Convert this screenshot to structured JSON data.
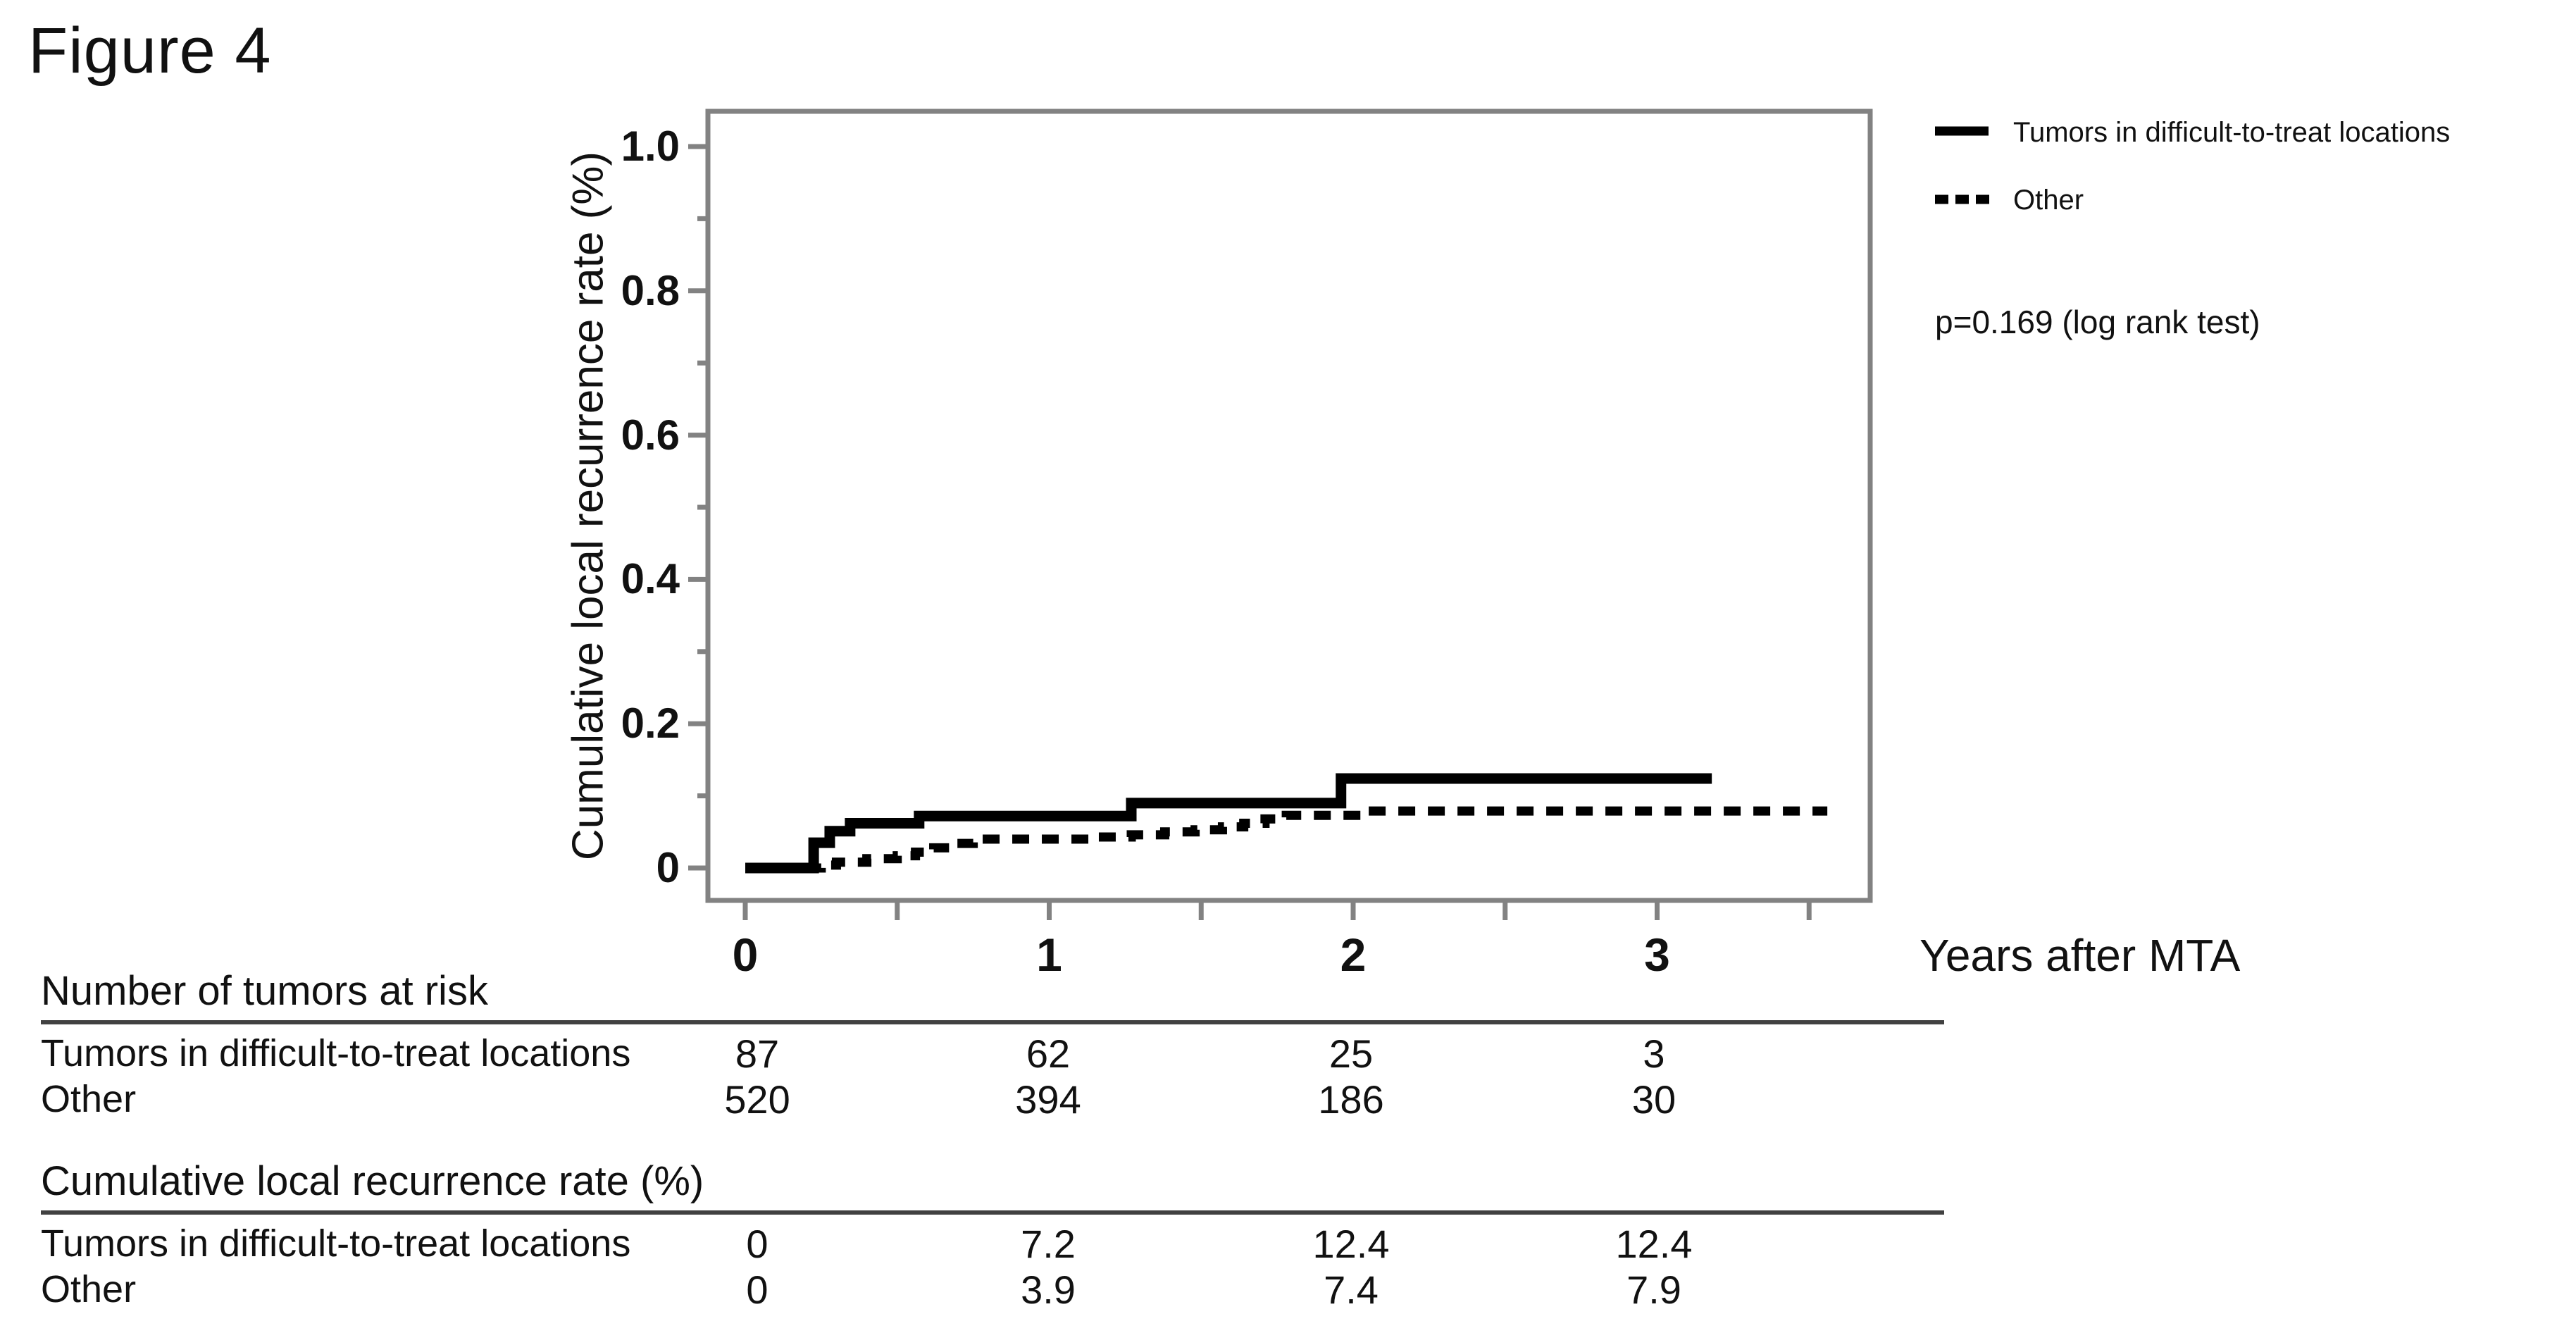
{
  "figure": {
    "label": "Figure 4"
  },
  "chart_data": {
    "type": "line",
    "subtype": "cumulative-incidence-step-curves",
    "title": "",
    "xlabel": "Years after MTA",
    "ylabel": "Cumulative local recurrence rate (%)",
    "xlim": [
      0,
      3.7
    ],
    "ylim": [
      0,
      1.08
    ],
    "grid": false,
    "legend_position": "outside-top-right",
    "annotation": "p=0.169 (log rank test)",
    "x_ticks": {
      "major": [
        0,
        1,
        2,
        3
      ],
      "minor": [
        0.5,
        1.5,
        2.5,
        3.5
      ],
      "labels": [
        "0",
        "1",
        "2",
        "3"
      ]
    },
    "y_ticks": {
      "major": [
        0,
        0.2,
        0.4,
        0.6,
        0.8,
        1.0
      ],
      "minor": [
        0.1,
        0.3,
        0.5,
        0.7,
        0.9
      ],
      "labels": [
        "0",
        "0.2",
        "0.4",
        "0.6",
        "0.8",
        "1.0"
      ]
    },
    "series": [
      {
        "name": "Tumors in difficult-to-treat locations",
        "line_style": "solid",
        "color": "#000000",
        "step_points": [
          [
            0,
            0
          ],
          [
            0.225,
            0.035
          ],
          [
            0.278,
            0.051
          ],
          [
            0.345,
            0.062
          ],
          [
            0.572,
            0.072
          ],
          [
            1.27,
            0.09
          ],
          [
            1.96,
            0.124
          ]
        ],
        "end_x": 3.18
      },
      {
        "name": "Other",
        "line_style": "dashed",
        "color": "#000000",
        "step_points": [
          [
            0,
            0
          ],
          [
            0.25,
            0.004
          ],
          [
            0.3,
            0.008
          ],
          [
            0.4,
            0.013
          ],
          [
            0.5,
            0.017
          ],
          [
            0.56,
            0.022
          ],
          [
            0.62,
            0.028
          ],
          [
            0.68,
            0.034
          ],
          [
            0.75,
            0.04
          ],
          [
            1.15,
            0.043
          ],
          [
            1.27,
            0.046
          ],
          [
            1.38,
            0.05
          ],
          [
            1.48,
            0.053
          ],
          [
            1.57,
            0.057
          ],
          [
            1.64,
            0.062
          ],
          [
            1.71,
            0.068
          ],
          [
            1.78,
            0.073
          ],
          [
            2.05,
            0.079
          ]
        ],
        "end_x": 3.56
      }
    ]
  },
  "tables": [
    {
      "title": "Number of tumors at risk",
      "rows": [
        {
          "label": "Tumors in difficult-to-treat locations",
          "values": [
            "87",
            "62",
            "25",
            "3"
          ]
        },
        {
          "label": "Other",
          "values": [
            "520",
            "394",
            "186",
            "30"
          ]
        }
      ]
    },
    {
      "title": "Cumulative local recurrence rate (%)",
      "rows": [
        {
          "label": "Tumors in difficult-to-treat locations",
          "values": [
            "0",
            "7.2",
            "12.4",
            "12.4"
          ]
        },
        {
          "label": "Other",
          "values": [
            "0",
            "3.9",
            "7.4",
            "7.9"
          ]
        }
      ]
    }
  ],
  "colors": {
    "curve": "#000000",
    "axis": "#828282",
    "rule": "#414141",
    "text": "#111111"
  }
}
